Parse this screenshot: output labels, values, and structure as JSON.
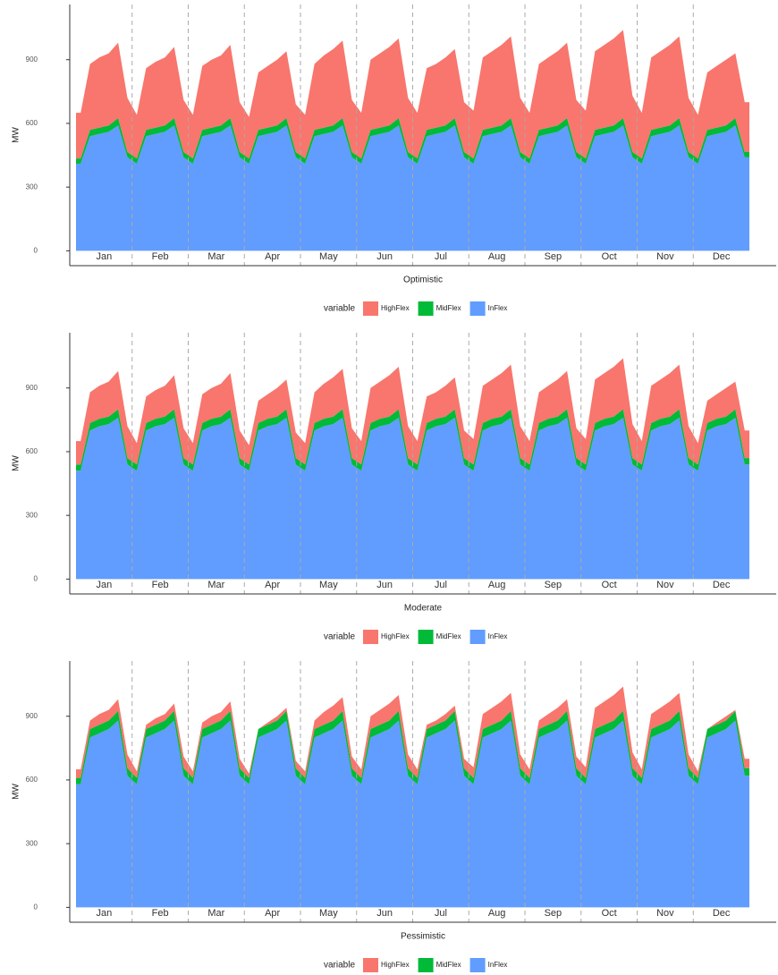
{
  "chart_data": [
    {
      "type": "area",
      "stacked": true,
      "x_label": "Optimistic",
      "y_label": "MW",
      "legend_title": "variable",
      "categories": [
        "Jan",
        "Feb",
        "Mar",
        "Apr",
        "May",
        "Jun",
        "Jul",
        "Aug",
        "Sep",
        "Oct",
        "Nov",
        "Dec"
      ],
      "ylim": [
        -70,
        1160
      ],
      "yticks": [
        0,
        300,
        600,
        900
      ],
      "series": [
        {
          "name": "HighFlex",
          "color": "#F8766D",
          "values": [
            [
              215,
              310,
              330,
              340,
              355,
              255
            ],
            [
              205,
              290,
              310,
              320,
              335,
              245
            ],
            [
              205,
              300,
              320,
              330,
              345,
              235
            ],
            [
              195,
              270,
              290,
              310,
              315,
              225
            ],
            [
              205,
              310,
              340,
              360,
              365,
              245
            ],
            [
              215,
              330,
              350,
              370,
              375,
              255
            ],
            [
              215,
              290,
              300,
              320,
              325,
              235
            ],
            [
              225,
              340,
              360,
              380,
              385,
              255
            ],
            [
              215,
              310,
              330,
              350,
              355,
              245
            ],
            [
              225,
              370,
              390,
              410,
              415,
              265
            ],
            [
              215,
              340,
              360,
              380,
              385,
              255
            ],
            [
              205,
              270,
              290,
              310,
              305,
              235
            ]
          ]
        },
        {
          "name": "MidFlex",
          "color": "#00BA38",
          "values": [
            [
              25,
              30,
              30,
              30,
              35,
              25
            ],
            [
              25,
              30,
              30,
              30,
              35,
              25
            ],
            [
              25,
              30,
              30,
              30,
              35,
              25
            ],
            [
              25,
              30,
              30,
              30,
              35,
              25
            ],
            [
              25,
              30,
              30,
              30,
              35,
              25
            ],
            [
              25,
              30,
              30,
              30,
              35,
              25
            ],
            [
              25,
              30,
              30,
              30,
              35,
              25
            ],
            [
              25,
              30,
              30,
              30,
              35,
              25
            ],
            [
              25,
              30,
              30,
              30,
              35,
              25
            ],
            [
              25,
              30,
              30,
              30,
              35,
              25
            ],
            [
              25,
              30,
              30,
              30,
              35,
              25
            ],
            [
              25,
              30,
              30,
              30,
              35,
              25
            ]
          ]
        },
        {
          "name": "InFlex",
          "color": "#619CFF",
          "values": [
            [
              410,
              540,
              550,
              560,
              590,
              440
            ],
            [
              410,
              540,
              550,
              560,
              590,
              440
            ],
            [
              410,
              540,
              550,
              560,
              590,
              440
            ],
            [
              410,
              540,
              550,
              560,
              590,
              440
            ],
            [
              410,
              540,
              550,
              560,
              590,
              440
            ],
            [
              410,
              540,
              550,
              560,
              590,
              440
            ],
            [
              410,
              540,
              550,
              560,
              590,
              440
            ],
            [
              410,
              540,
              550,
              560,
              590,
              440
            ],
            [
              410,
              540,
              550,
              560,
              590,
              440
            ],
            [
              410,
              540,
              550,
              560,
              590,
              440
            ],
            [
              410,
              540,
              550,
              560,
              590,
              440
            ],
            [
              410,
              540,
              550,
              560,
              590,
              440
            ]
          ]
        }
      ]
    },
    {
      "type": "area",
      "stacked": true,
      "x_label": "Moderate",
      "y_label": "MW",
      "legend_title": "variable",
      "categories": [
        "Jan",
        "Feb",
        "Mar",
        "Apr",
        "May",
        "Jun",
        "Jul",
        "Aug",
        "Sep",
        "Oct",
        "Nov",
        "Dec"
      ],
      "ylim": [
        -70,
        1160
      ],
      "yticks": [
        0,
        300,
        600,
        900
      ],
      "series": [
        {
          "name": "HighFlex",
          "color": "#F8766D",
          "values": [
            [
              110,
              145,
              155,
              165,
              180,
              150
            ],
            [
              100,
              125,
              135,
              145,
              160,
              140
            ],
            [
              100,
              135,
              145,
              155,
              170,
              130
            ],
            [
              90,
              105,
              115,
              135,
              140,
              120
            ],
            [
              100,
              145,
              165,
              185,
              190,
              140
            ],
            [
              110,
              165,
              175,
              195,
              200,
              150
            ],
            [
              110,
              125,
              125,
              145,
              150,
              130
            ],
            [
              120,
              175,
              185,
              205,
              210,
              150
            ],
            [
              110,
              145,
              155,
              175,
              180,
              140
            ],
            [
              120,
              205,
              215,
              235,
              240,
              160
            ],
            [
              110,
              175,
              185,
              205,
              210,
              150
            ],
            [
              100,
              105,
              115,
              135,
              130,
              130
            ]
          ]
        },
        {
          "name": "MidFlex",
          "color": "#00BA38",
          "values": [
            [
              30,
              35,
              35,
              35,
              40,
              30
            ],
            [
              30,
              35,
              35,
              35,
              40,
              30
            ],
            [
              30,
              35,
              35,
              35,
              40,
              30
            ],
            [
              30,
              35,
              35,
              35,
              40,
              30
            ],
            [
              30,
              35,
              35,
              35,
              40,
              30
            ],
            [
              30,
              35,
              35,
              35,
              40,
              30
            ],
            [
              30,
              35,
              35,
              35,
              40,
              30
            ],
            [
              30,
              35,
              35,
              35,
              40,
              30
            ],
            [
              30,
              35,
              35,
              35,
              40,
              30
            ],
            [
              30,
              35,
              35,
              35,
              40,
              30
            ],
            [
              30,
              35,
              35,
              35,
              40,
              30
            ],
            [
              30,
              35,
              35,
              35,
              40,
              30
            ]
          ]
        },
        {
          "name": "InFlex",
          "color": "#619CFF",
          "values": [
            [
              510,
              700,
              720,
              730,
              760,
              540
            ],
            [
              510,
              700,
              720,
              730,
              760,
              540
            ],
            [
              510,
              700,
              720,
              730,
              760,
              540
            ],
            [
              510,
              700,
              720,
              730,
              760,
              540
            ],
            [
              510,
              700,
              720,
              730,
              760,
              540
            ],
            [
              510,
              700,
              720,
              730,
              760,
              540
            ],
            [
              510,
              700,
              720,
              730,
              760,
              540
            ],
            [
              510,
              700,
              720,
              730,
              760,
              540
            ],
            [
              510,
              700,
              720,
              730,
              760,
              540
            ],
            [
              510,
              700,
              720,
              730,
              760,
              540
            ],
            [
              510,
              700,
              720,
              730,
              760,
              540
            ],
            [
              510,
              700,
              720,
              730,
              760,
              540
            ]
          ]
        }
      ]
    },
    {
      "type": "area",
      "stacked": true,
      "x_label": "Pessimistic",
      "y_label": "MW",
      "legend_title": "variable",
      "categories": [
        "Jan",
        "Feb",
        "Mar",
        "Apr",
        "May",
        "Jun",
        "Jul",
        "Aug",
        "Sep",
        "Oct",
        "Nov",
        "Dec"
      ],
      "ylim": [
        -70,
        1160
      ],
      "yticks": [
        0,
        300,
        600,
        900
      ],
      "series": [
        {
          "name": "HighFlex",
          "color": "#F8766D",
          "values": [
            [
              40,
              40,
              50,
              50,
              55,
              65
            ],
            [
              30,
              20,
              30,
              30,
              35,
              55
            ],
            [
              30,
              30,
              40,
              40,
              45,
              45
            ],
            [
              20,
              0,
              10,
              20,
              15,
              35
            ],
            [
              30,
              40,
              60,
              70,
              65,
              55
            ],
            [
              40,
              60,
              70,
              80,
              75,
              65
            ],
            [
              40,
              20,
              20,
              30,
              25,
              45
            ],
            [
              50,
              70,
              80,
              90,
              85,
              65
            ],
            [
              40,
              40,
              50,
              60,
              55,
              55
            ],
            [
              50,
              100,
              110,
              120,
              115,
              75
            ],
            [
              40,
              70,
              80,
              90,
              85,
              65
            ],
            [
              30,
              0,
              10,
              20,
              5,
              45
            ]
          ]
        },
        {
          "name": "MidFlex",
          "color": "#00BA38",
          "values": [
            [
              30,
              40,
              40,
              40,
              45,
              35
            ],
            [
              30,
              40,
              40,
              40,
              45,
              35
            ],
            [
              30,
              40,
              40,
              40,
              45,
              35
            ],
            [
              30,
              40,
              40,
              40,
              45,
              35
            ],
            [
              30,
              40,
              40,
              40,
              45,
              35
            ],
            [
              30,
              40,
              40,
              40,
              45,
              35
            ],
            [
              30,
              40,
              40,
              40,
              45,
              35
            ],
            [
              30,
              40,
              40,
              40,
              45,
              35
            ],
            [
              30,
              40,
              40,
              40,
              45,
              35
            ],
            [
              30,
              40,
              40,
              40,
              45,
              35
            ],
            [
              30,
              40,
              40,
              40,
              45,
              35
            ],
            [
              30,
              40,
              40,
              40,
              45,
              35
            ]
          ]
        },
        {
          "name": "InFlex",
          "color": "#619CFF",
          "values": [
            [
              580,
              800,
              820,
              840,
              880,
              620
            ],
            [
              580,
              800,
              820,
              840,
              880,
              620
            ],
            [
              580,
              800,
              820,
              840,
              880,
              620
            ],
            [
              580,
              800,
              820,
              840,
              880,
              620
            ],
            [
              580,
              800,
              820,
              840,
              880,
              620
            ],
            [
              580,
              800,
              820,
              840,
              880,
              620
            ],
            [
              580,
              800,
              820,
              840,
              880,
              620
            ],
            [
              580,
              800,
              820,
              840,
              880,
              620
            ],
            [
              580,
              800,
              820,
              840,
              880,
              620
            ],
            [
              580,
              800,
              820,
              840,
              880,
              620
            ],
            [
              580,
              800,
              820,
              840,
              880,
              620
            ],
            [
              580,
              800,
              820,
              840,
              880,
              620
            ]
          ]
        }
      ]
    }
  ]
}
